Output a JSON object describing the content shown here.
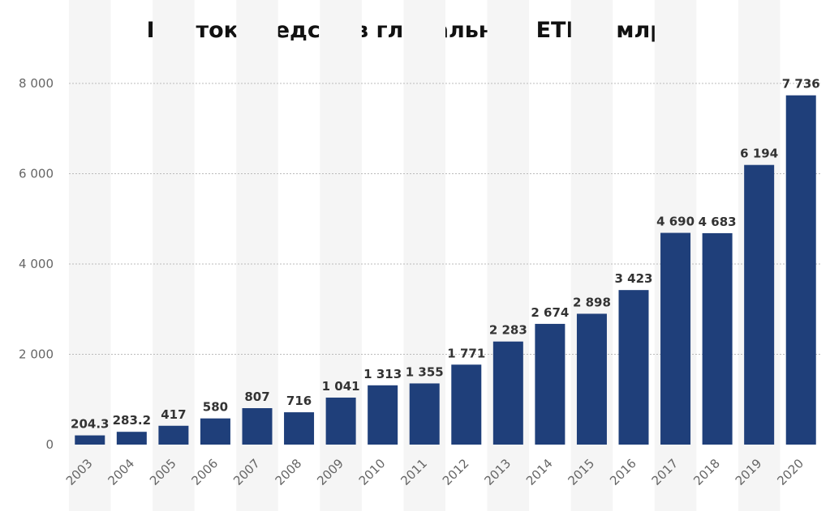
{
  "chart_data": {
    "type": "bar",
    "title": "Приток средств в глобальные ETF, $ млрд",
    "xlabel": "",
    "ylabel": "",
    "categories": [
      "2003",
      "2004",
      "2005",
      "2006",
      "2007",
      "2008",
      "2009",
      "2010",
      "2011",
      "2012",
      "2013",
      "2014",
      "2015",
      "2016",
      "2017",
      "2018",
      "2019",
      "2020"
    ],
    "values": [
      204.3,
      283.2,
      417,
      580,
      807,
      716,
      1041,
      1313,
      1355,
      1771,
      2283,
      2674,
      2898,
      3423,
      4690,
      4683,
      6194,
      7736
    ],
    "value_labels": [
      "204.3",
      "283.2",
      "417",
      "580",
      "807",
      "716",
      "1 041",
      "1 313",
      "1 355",
      "1 771",
      "2 283",
      "2 674",
      "2 898",
      "3 423",
      "4 690",
      "4 683",
      "6 194",
      "7 736"
    ],
    "ylim": [
      0,
      8000
    ],
    "yticks": [
      0,
      2000,
      4000,
      6000,
      8000
    ],
    "ytick_labels": [
      "0",
      "2 000",
      "4 000",
      "6 000",
      "8 000"
    ],
    "grid": true,
    "bar_color": "#1f3f7a",
    "band_color": "#f5f5f5"
  }
}
